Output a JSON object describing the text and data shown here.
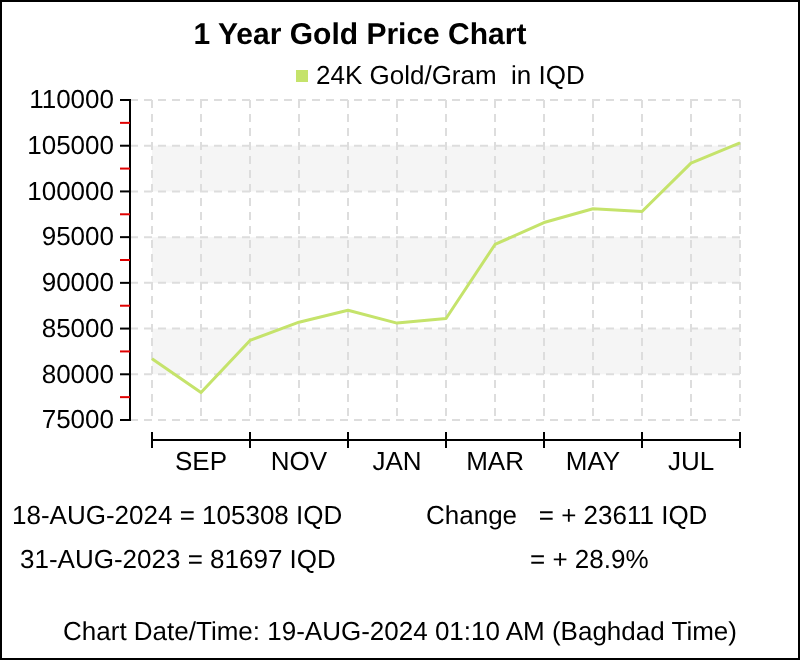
{
  "chart_data": {
    "type": "line",
    "title": "1 Year Gold Price Chart",
    "categories": [
      null,
      "SEP",
      null,
      "NOV",
      null,
      "JAN",
      null,
      "MAR",
      null,
      "MAY",
      null,
      "JUL",
      null
    ],
    "series": [
      {
        "name": "24K Gold/Gram  in IQD",
        "color": "#c5e36b",
        "values": [
          81697,
          78000,
          83700,
          85700,
          87000,
          85600,
          86100,
          94200,
          96600,
          98100,
          97800,
          103100,
          105308
        ]
      }
    ],
    "ylim": [
      75000,
      110000
    ],
    "yticks": [
      75000,
      {
        "value": 77500,
        "label": null
      },
      80000,
      {
        "value": 82500,
        "label": null
      },
      85000,
      {
        "value": 87500,
        "label": null
      },
      90000,
      {
        "value": 92500,
        "label": null
      },
      95000,
      {
        "value": 97500,
        "label": null
      },
      100000,
      {
        "value": 102500,
        "label": null
      },
      105000,
      {
        "value": 107500,
        "label": null
      },
      110000
    ],
    "bands": [
      {
        "axis": "y",
        "from": 80000,
        "to": 85000,
        "color": "#f5f5f5"
      },
      {
        "axis": "y",
        "from": 90000,
        "to": 95000,
        "color": "#f5f5f5"
      },
      {
        "axis": "y",
        "from": 100000,
        "to": 105000,
        "color": "#f5f5f5"
      }
    ],
    "grid": true,
    "legend": "top",
    "marker": "none",
    "line_style": "solid",
    "annotations": [
      "18-AUG-2024 = 105308 IQD",
      "Change   = + 23611 IQD",
      "31-AUG-2023 = 81697 IQD",
      "= + 28.9%",
      "Chart Date/Time: 19-AUG-2024 01:10 AM (Baghdad Time)"
    ]
  }
}
